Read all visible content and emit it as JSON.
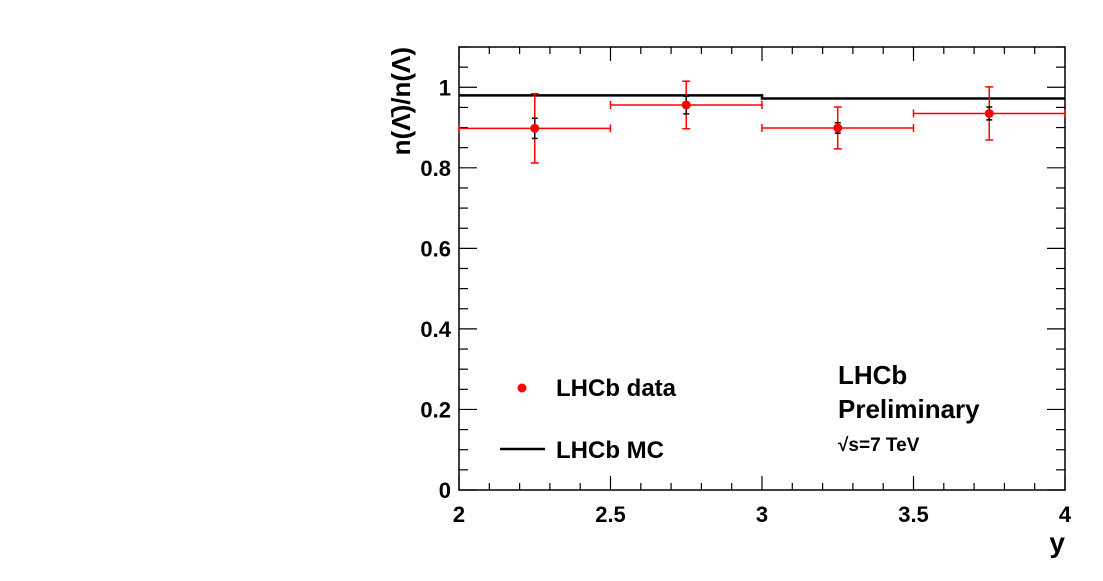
{
  "chart_data": {
    "type": "scatter",
    "xlabel": "y",
    "ylabel": "n(Λ̄)/n(Λ)",
    "xlim": [
      2,
      4
    ],
    "ylim": [
      0,
      1.1
    ],
    "x_ticks": [
      "2",
      "2.5",
      "3",
      "3.5",
      "4"
    ],
    "y_ticks": [
      "0",
      "0.2",
      "0.4",
      "0.6",
      "0.8",
      "1"
    ],
    "grid": false,
    "legend_position": "bottom-left",
    "colors": {
      "data": "#ff0000",
      "mc": "#000000"
    },
    "series": [
      {
        "name": "LHCb data",
        "kind": "points",
        "x": [
          2.25,
          2.75,
          3.25,
          3.75
        ],
        "x_err": [
          0.25,
          0.25,
          0.25,
          0.25
        ],
        "y": [
          0.898,
          0.956,
          0.899,
          0.935
        ],
        "y_err_stat": [
          0.025,
          0.022,
          0.013,
          0.016
        ],
        "y_err_total": [
          0.086,
          0.059,
          0.052,
          0.066
        ]
      },
      {
        "name": "LHCb MC",
        "kind": "histogram",
        "bin_edges": [
          2,
          2.5,
          3,
          3.5,
          4
        ],
        "values": [
          0.98,
          0.98,
          0.972,
          0.972
        ]
      }
    ],
    "annotations": [
      "LHCb",
      "Preliminary",
      "√s=7 TeV"
    ]
  }
}
